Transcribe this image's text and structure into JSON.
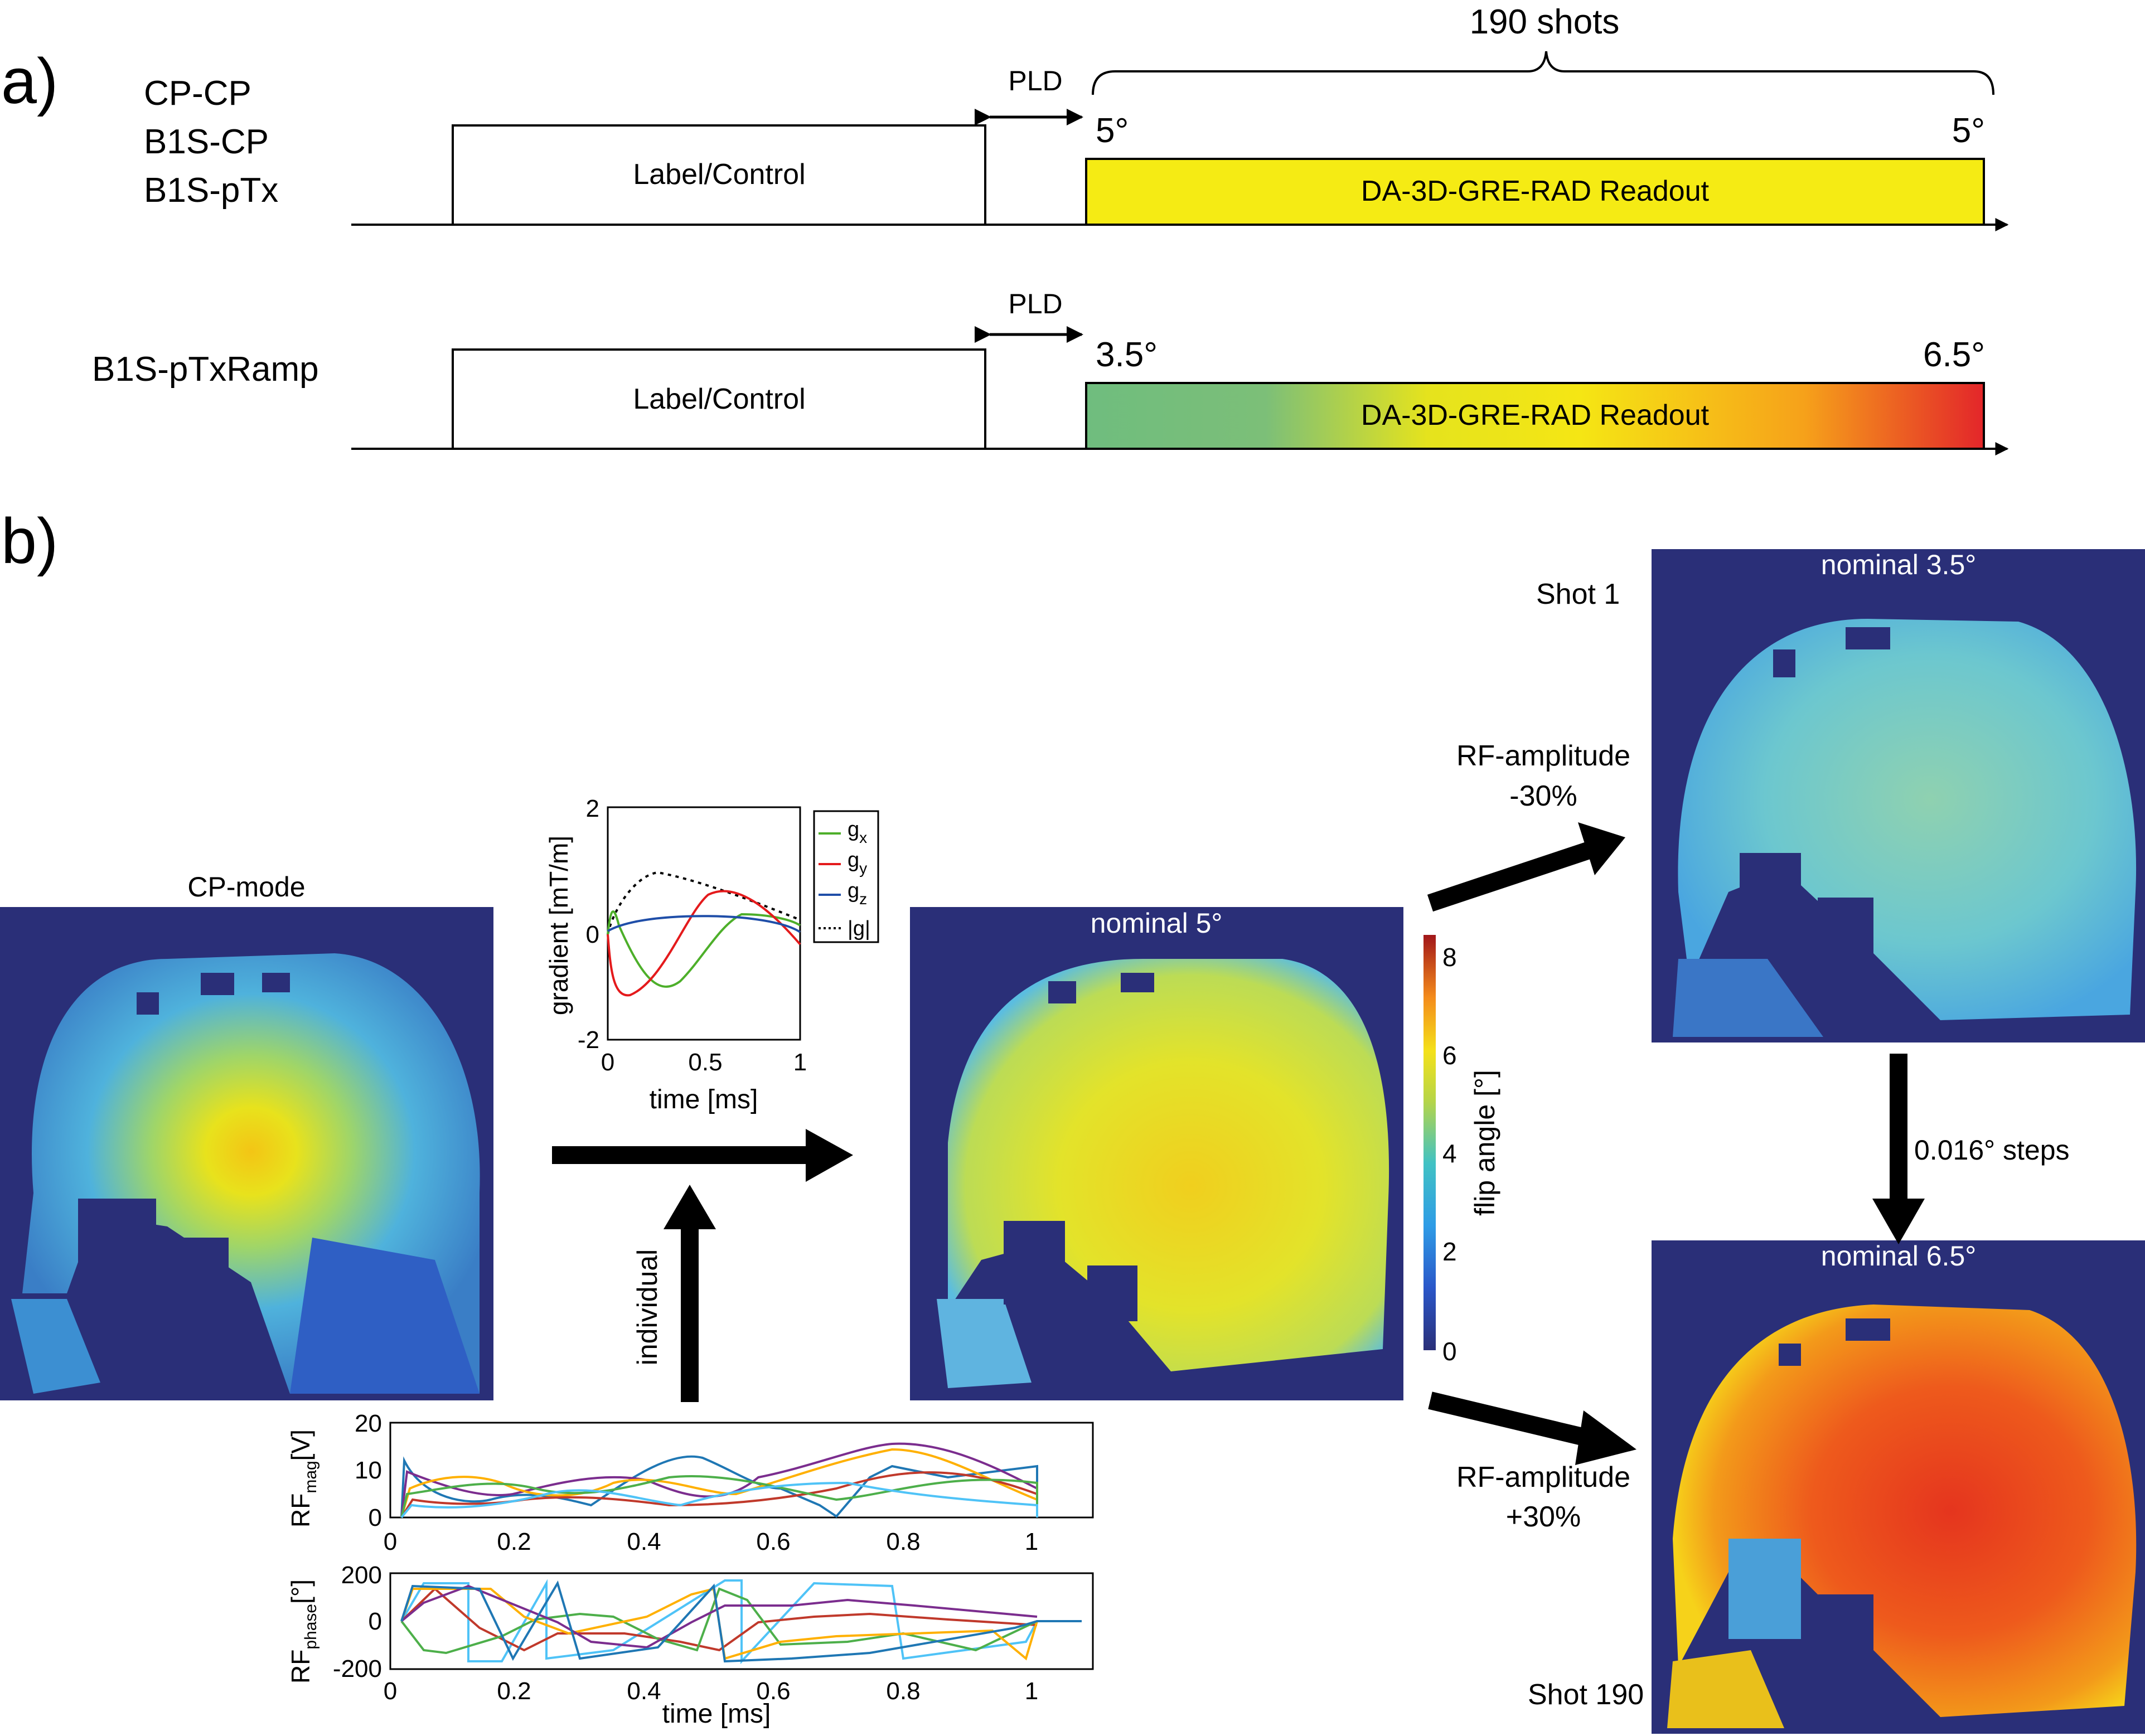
{
  "panel_a": {
    "label": "a)",
    "row1": {
      "sequences": [
        "CP-CP",
        "B1S-CP",
        "B1S-pTx"
      ],
      "label_block": "Label/Control",
      "pld": "PLD",
      "shots": "190 shots",
      "fa_start": "5°",
      "fa_end": "5°",
      "readout": "DA-3D-GRE-RAD Readout"
    },
    "row2": {
      "sequence": "B1S-pTxRamp",
      "label_block": "Label/Control",
      "pld": "PLD",
      "fa_start": "3.5°",
      "fa_end": "6.5°",
      "readout": "DA-3D-GRE-RAD Readout"
    }
  },
  "panel_b": {
    "label": "b)",
    "cp_mode": "CP-mode",
    "nominal_5": "nominal 5°",
    "nominal_35": "nominal 3.5°",
    "nominal_65": "nominal 6.5°",
    "shot1": "Shot 1",
    "shot190": "Shot 190",
    "rf_minus": [
      "RF-amplitude",
      "-30%"
    ],
    "rf_plus": [
      "RF-amplitude",
      "+30%"
    ],
    "steps": "0.016° steps",
    "individual": "individual",
    "colorbar": {
      "label": "flip angle [°]",
      "ticks": [
        "0",
        "2",
        "4",
        "6",
        "8"
      ]
    },
    "gradient_plot": {
      "ylabel": "gradient [mT/m]",
      "xlabel": "time [ms]",
      "yticks": [
        "-2",
        "0",
        "2"
      ],
      "xticks": [
        "0",
        "0.5",
        "1"
      ],
      "legend": [
        "g",
        "g",
        "g",
        "|g|"
      ],
      "legend_sub": [
        "x",
        "y",
        "z",
        ""
      ]
    },
    "rf_plot": {
      "mag_ylabel": "RF",
      "mag_ylabel_sub": "mag",
      "mag_unit": "[V]",
      "mag_yticks": [
        "0",
        "10",
        "20"
      ],
      "phase_ylabel": "RF",
      "phase_ylabel_sub": "phase",
      "phase_unit": "[°]",
      "phase_yticks": [
        "-200",
        "0",
        "200"
      ],
      "xticks": [
        "0",
        "0.2",
        "0.4",
        "0.6",
        "0.8",
        "1"
      ],
      "xlabel": "time [ms]"
    }
  },
  "colors": {
    "background_map": "#2a2f78",
    "readout_yellow": "#f5eb14",
    "gx": "#4daf2a",
    "gy": "#e41a1c",
    "gz": "#1f4ea8"
  }
}
